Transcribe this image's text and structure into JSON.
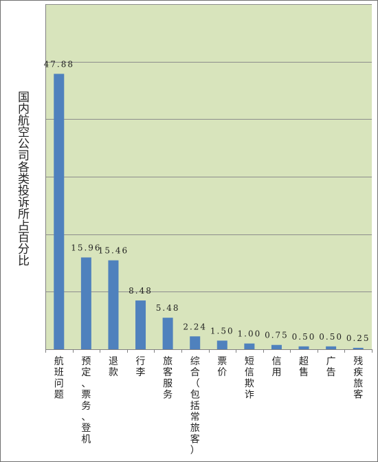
{
  "chart_data": {
    "type": "bar",
    "title": "",
    "xlabel": "",
    "ylabel": "国内航空公司各类投诉所占百分比",
    "ylim": [
      0,
      60
    ],
    "grid": "horizontal",
    "colors": {
      "plot_bg": "#d8e4bc",
      "bar": "#4f81bd",
      "grid": "#8c8c8c"
    },
    "categories": [
      "航班问题",
      "预定、票务、登机",
      "退款",
      "行李",
      "旅客服务",
      "综合（包括常旅客）",
      "票价",
      "短信欺诈",
      "信用",
      "超售",
      "广告",
      "残疾旅客"
    ],
    "values": [
      47.88,
      15.96,
      15.46,
      8.48,
      5.48,
      2.24,
      1.5,
      1.0,
      0.75,
      0.5,
      0.5,
      0.25
    ],
    "data_labels": [
      "47.88",
      "15.96",
      "15.46",
      "8.48",
      "5.48",
      "2.24",
      "1.50",
      "1.00",
      "0.75",
      "0.50",
      "0.50",
      "0.25"
    ]
  }
}
